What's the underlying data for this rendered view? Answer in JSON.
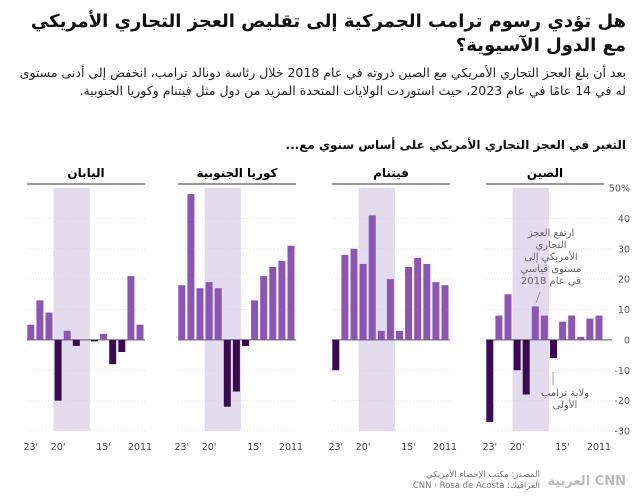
{
  "header": {
    "title": "هل تؤدي رسوم ترامب الجمركية إلى تقليص العجز التجاري الأمريكي مع الدول الآسيوية؟",
    "subtitle": "بعد أن بلغ العجز التجاري الأمريكي مع الصين ذروته في عام 2018 خلال رئاسة دونالد ترامب، انخفض إلى أدنى مستوى له في 14 عامًا في عام 2023، حيث استوردت الولايات المتحدة المزيد من دول مثل فيتنام وكوريا الجنوبية."
  },
  "chart_data": {
    "type": "bar",
    "title": "التغير في العجز التجاري الأمريكي على أساس سنوي مع...",
    "categories": [
      "2011",
      null,
      null,
      null,
      "15'",
      null,
      null,
      null,
      null,
      "20'",
      null,
      null,
      "23'"
    ],
    "ylim": [
      -30,
      50
    ],
    "yticks": [
      {
        "value": 50,
        "label": "50%"
      },
      40,
      30,
      20,
      10,
      0,
      -10,
      -20,
      -30
    ],
    "color": "#8c55b5",
    "negative_color": "#3b0a55",
    "grid": true,
    "panels": [
      {
        "title": "الصين",
        "values": [
          8,
          7,
          1,
          8,
          6,
          -6,
          8,
          11,
          -18,
          -10,
          15,
          8,
          -27
        ]
      },
      {
        "title": "فيتنام",
        "values": [
          18,
          19,
          25,
          27,
          24,
          3,
          20,
          3,
          41,
          25,
          30,
          28,
          -10
        ]
      },
      {
        "title": "كوريا الجنوبية",
        "values": [
          31,
          26,
          24,
          21,
          13,
          -2,
          -17,
          -22,
          17,
          19,
          17,
          48,
          18
        ]
      },
      {
        "title": "اليابان",
        "values": [
          5,
          21,
          -4,
          -8,
          2,
          -0.5,
          0,
          -2,
          3,
          -20,
          9,
          13,
          5
        ]
      }
    ],
    "annotations": [
      "ارتفع العجز التجاري الأمريكي إلى مستوى قياسي في عام 2018",
      "ولاية ترامب الأولى"
    ]
  },
  "footer": {
    "source": "المصدر: مكتب الإحصاء الأمريكي",
    "credit": "الغرافيك: CNN · Rosa de Acosta",
    "logo": "CNN العربية"
  }
}
